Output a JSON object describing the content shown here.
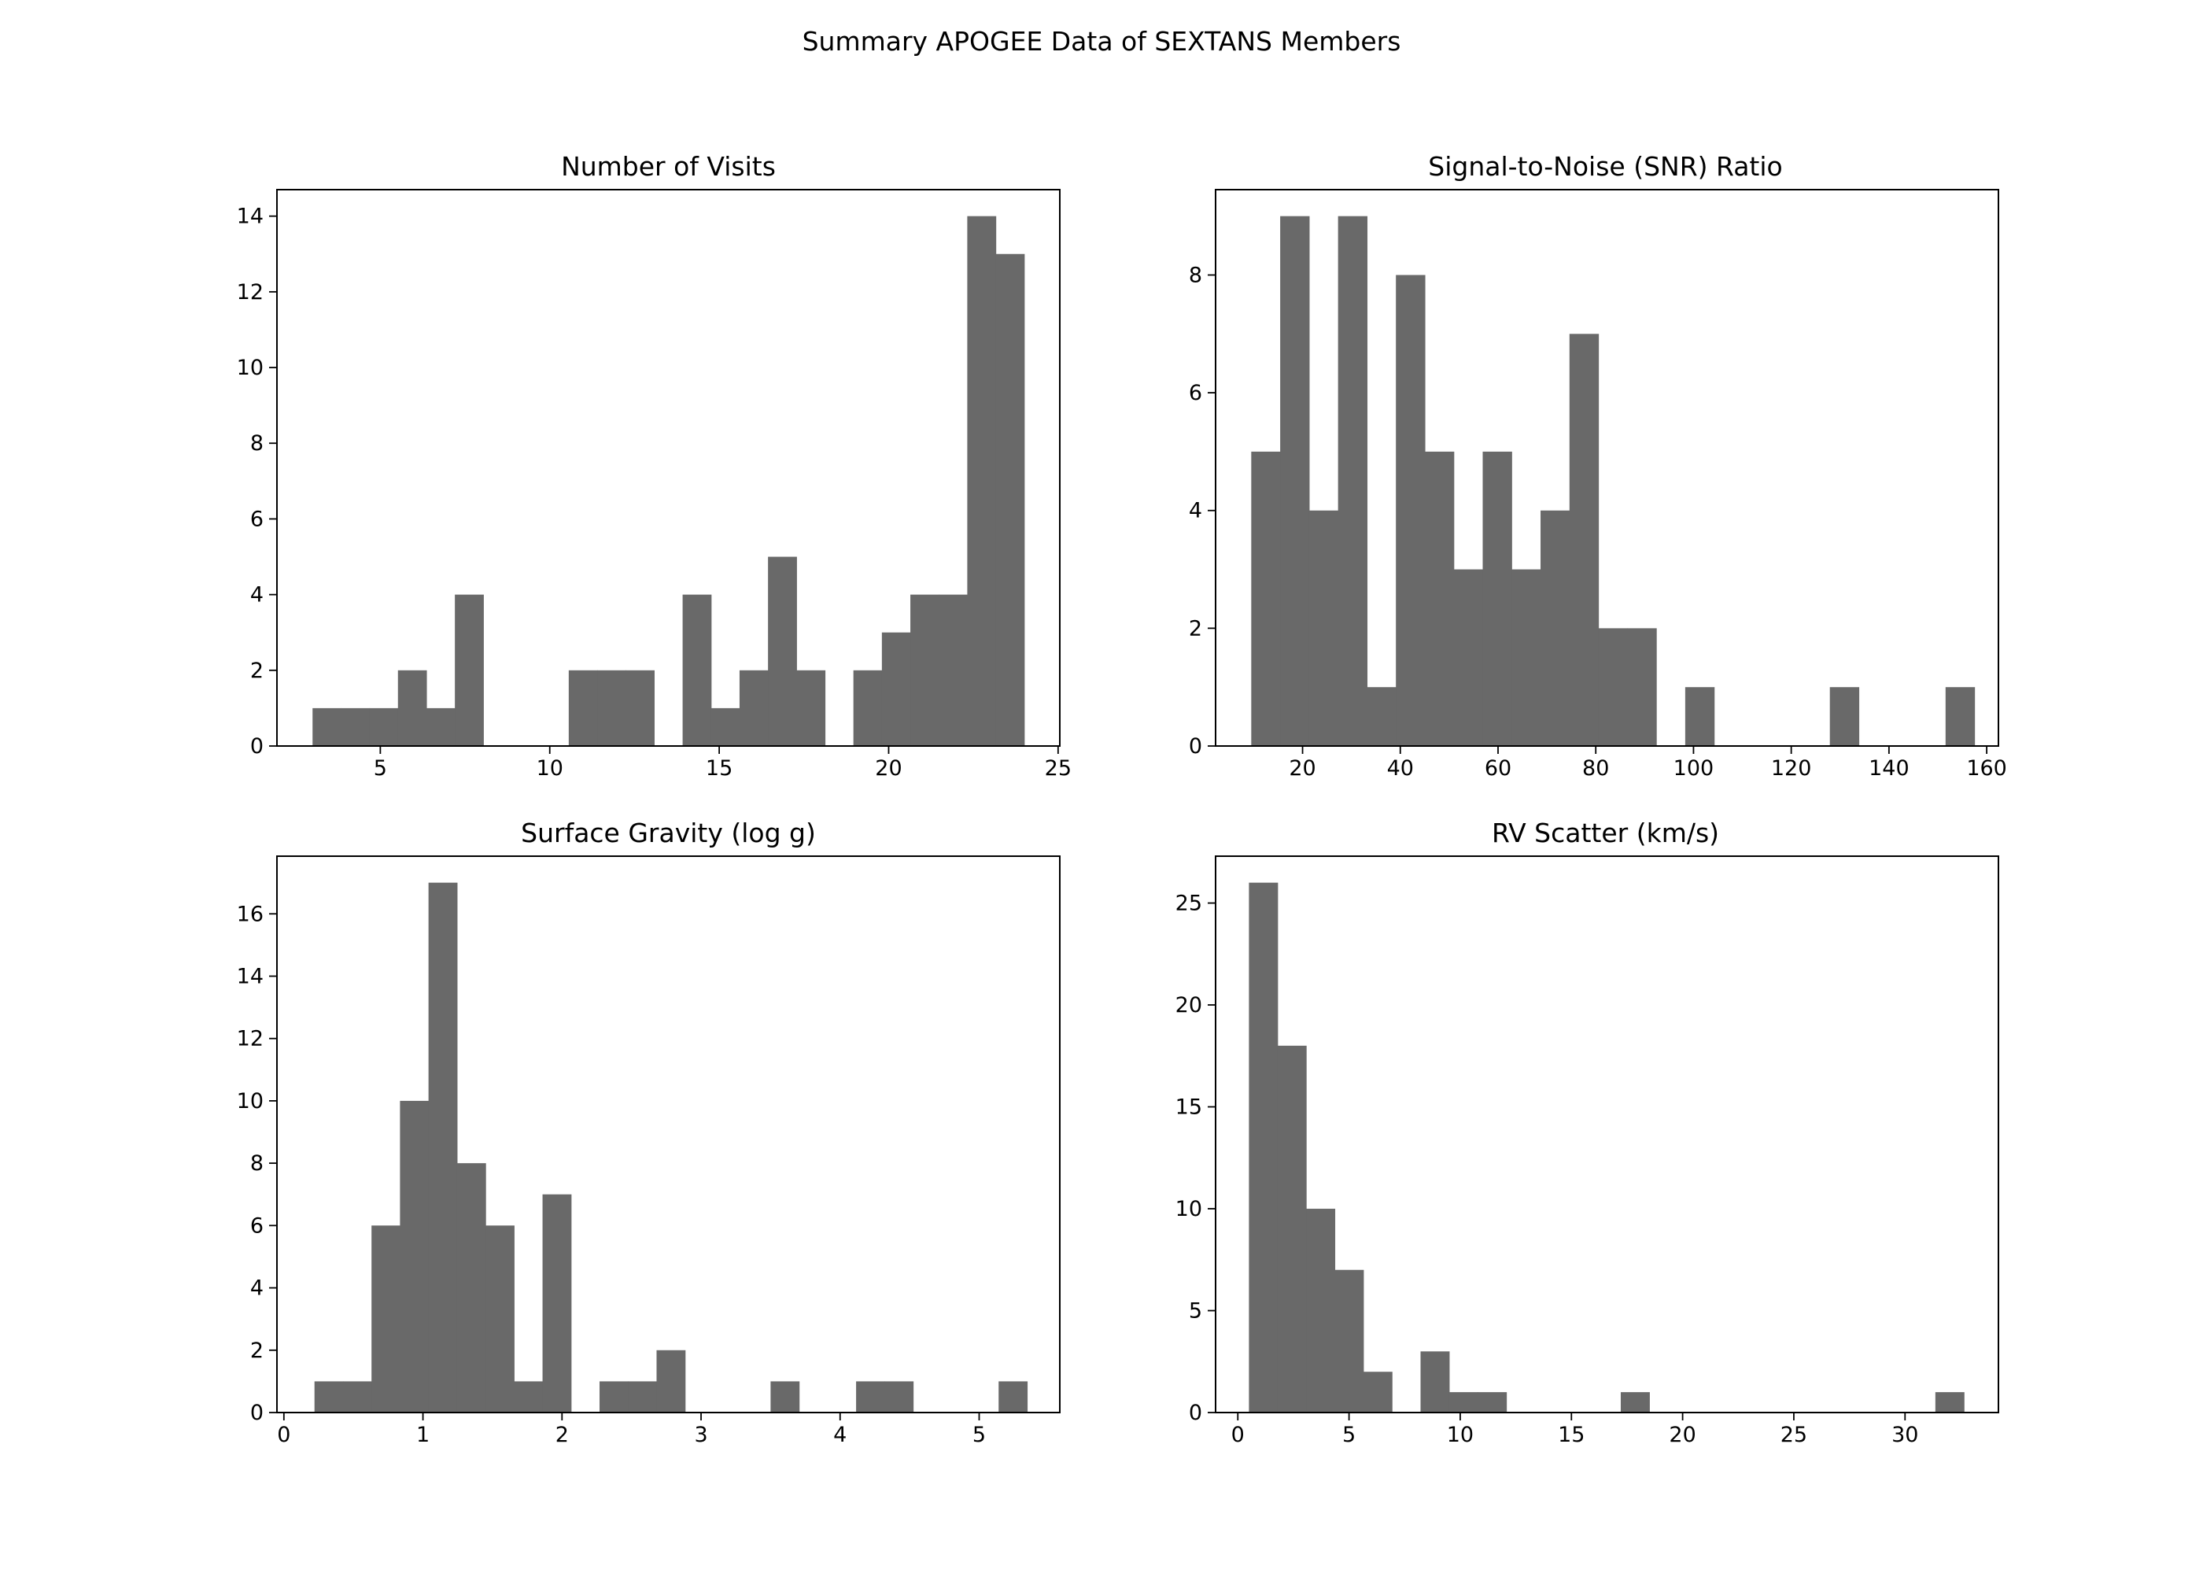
{
  "figure": {
    "title": "Summary APOGEE Data of SEXTANS Members",
    "bar_color": "#696969"
  },
  "chart_data": [
    {
      "type": "bar",
      "title": "Number of Visits",
      "xlabel": "",
      "ylabel": "",
      "xlim": [
        1.95,
        25.05
      ],
      "ylim": [
        0,
        14.7
      ],
      "xticks": [
        5,
        10,
        15,
        20,
        25
      ],
      "yticks": [
        0,
        2,
        4,
        6,
        8,
        10,
        12,
        14
      ],
      "bin_edges": [
        3.0,
        3.84,
        4.68,
        5.52,
        6.36,
        7.2,
        8.04,
        8.88,
        9.72,
        10.56,
        11.4,
        12.24,
        13.08,
        13.92,
        14.76,
        15.6,
        16.44,
        17.28,
        18.12,
        18.96,
        19.8,
        20.64,
        21.48,
        22.32,
        23.16,
        24.0
      ],
      "counts": [
        1,
        1,
        1,
        2,
        1,
        4,
        0,
        0,
        0,
        2,
        2,
        2,
        0,
        4,
        1,
        2,
        5,
        2,
        0,
        2,
        3,
        4,
        4,
        14,
        13
      ],
      "grid": false
    },
    {
      "type": "bar",
      "title": "Signal-to-Noise (SNR) Ratio",
      "xlabel": "",
      "ylabel": "",
      "xlim": [
        2.2,
        162.4
      ],
      "ylim": [
        0,
        9.45
      ],
      "xticks": [
        20,
        40,
        60,
        80,
        100,
        120,
        140,
        160
      ],
      "yticks": [
        0,
        2,
        4,
        6,
        8
      ],
      "bin_edges": [
        9.5,
        15.42,
        21.34,
        27.26,
        33.18,
        39.1,
        45.02,
        50.94,
        56.86,
        62.78,
        68.7,
        74.62,
        80.54,
        86.46,
        92.38,
        98.3,
        104.22,
        110.14,
        116.06,
        121.98,
        127.9,
        133.82,
        139.74,
        145.66,
        151.58,
        157.5
      ],
      "counts": [
        5,
        9,
        4,
        9,
        1,
        8,
        5,
        3,
        5,
        3,
        4,
        7,
        2,
        2,
        0,
        1,
        0,
        0,
        0,
        0,
        1,
        0,
        0,
        0,
        1
      ],
      "grid": false
    },
    {
      "type": "bar",
      "title": "Surface Gravity (log g)",
      "xlabel": "",
      "ylabel": "",
      "xlim": [
        -0.05,
        5.58
      ],
      "ylim": [
        0,
        17.85
      ],
      "xticks": [
        0,
        1,
        2,
        3,
        4,
        5
      ],
      "yticks": [
        0,
        2,
        4,
        6,
        8,
        10,
        12,
        14,
        16
      ],
      "bin_edges": [
        0.22,
        0.425,
        0.63,
        0.835,
        1.04,
        1.245,
        1.45,
        1.655,
        1.86,
        2.065,
        2.27,
        2.475,
        2.68,
        2.885,
        3.09,
        3.295,
        3.5,
        3.705,
        3.91,
        4.115,
        4.32,
        4.525,
        4.73,
        4.935,
        5.14,
        5.345
      ],
      "counts": [
        1,
        1,
        6,
        10,
        17,
        8,
        6,
        1,
        7,
        0,
        1,
        1,
        2,
        0,
        0,
        0,
        1,
        0,
        0,
        1,
        1,
        0,
        0,
        0,
        1
      ],
      "grid": false
    },
    {
      "type": "bar",
      "title": "RV Scatter (km/s)",
      "xlabel": "",
      "ylabel": "",
      "xlim": [
        -1.0,
        34.2
      ],
      "ylim": [
        0,
        27.3
      ],
      "xticks": [
        0,
        5,
        10,
        15,
        20,
        25,
        30
      ],
      "yticks": [
        0,
        5,
        10,
        15,
        20,
        25
      ],
      "bin_edges": [
        0.5,
        1.786,
        3.072,
        4.358,
        5.644,
        6.93,
        8.216,
        9.502,
        10.788,
        12.074,
        13.36,
        14.646,
        15.932,
        17.218,
        18.504,
        19.79,
        21.076,
        22.362,
        23.648,
        24.934,
        26.22,
        27.506,
        28.792,
        30.078,
        31.364,
        32.65
      ],
      "counts": [
        26,
        18,
        10,
        7,
        2,
        0,
        3,
        1,
        1,
        0,
        0,
        0,
        0,
        1,
        0,
        0,
        0,
        0,
        0,
        0,
        0,
        0,
        0,
        0,
        1
      ],
      "grid": false
    }
  ]
}
